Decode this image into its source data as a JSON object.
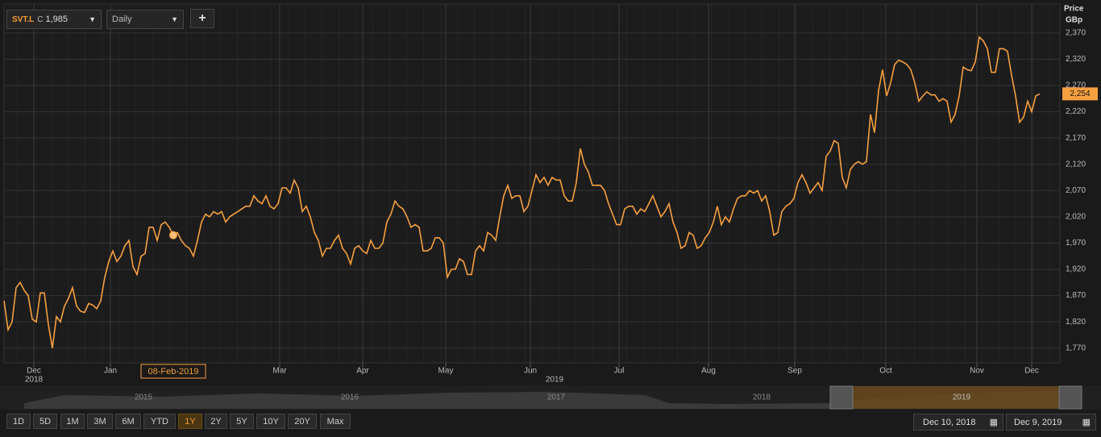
{
  "chart_data": {
    "type": "line",
    "title": "SVT.L",
    "axis_label": [
      "Price",
      "GBp"
    ],
    "color": "#f7a040",
    "values": [
      1860,
      1805,
      1820,
      1885,
      1895,
      1880,
      1870,
      1825,
      1820,
      1875,
      1875,
      1815,
      1770,
      1830,
      1820,
      1850,
      1865,
      1885,
      1850,
      1840,
      1838,
      1855,
      1852,
      1845,
      1860,
      1905,
      1935,
      1955,
      1935,
      1945,
      1965,
      1975,
      1925,
      1910,
      1945,
      1950,
      2000,
      2000,
      1975,
      2005,
      2010,
      2000,
      1985,
      1990,
      1975,
      1965,
      1960,
      1945,
      1975,
      2010,
      2025,
      2020,
      2030,
      2025,
      2030,
      2010,
      2020,
      2025,
      2030,
      2035,
      2040,
      2040,
      2060,
      2050,
      2045,
      2060,
      2040,
      2035,
      2045,
      2075,
      2075,
      2065,
      2090,
      2075,
      2030,
      2040,
      2020,
      1990,
      1975,
      1945,
      1960,
      1960,
      1975,
      1985,
      1960,
      1950,
      1930,
      1960,
      1965,
      1955,
      1950,
      1975,
      1960,
      1960,
      1970,
      2010,
      2025,
      2050,
      2040,
      2035,
      2020,
      2000,
      2005,
      2000,
      1955,
      1955,
      1960,
      1980,
      1980,
      1970,
      1905,
      1920,
      1920,
      1940,
      1935,
      1910,
      1910,
      1955,
      1965,
      1955,
      1990,
      1985,
      1975,
      2020,
      2060,
      2080,
      2055,
      2060,
      2060,
      2030,
      2040,
      2070,
      2100,
      2085,
      2095,
      2080,
      2095,
      2090,
      2090,
      2060,
      2050,
      2050,
      2085,
      2150,
      2120,
      2105,
      2080,
      2080,
      2080,
      2070,
      2045,
      2025,
      2005,
      2005,
      2035,
      2040,
      2040,
      2025,
      2035,
      2030,
      2045,
      2060,
      2040,
      2020,
      2030,
      2045,
      2010,
      1990,
      1960,
      1965,
      1990,
      1985,
      1960,
      1965,
      1980,
      1990,
      2010,
      2040,
      2005,
      2020,
      2010,
      2035,
      2055,
      2060,
      2060,
      2070,
      2065,
      2070,
      2050,
      2060,
      2030,
      1985,
      1990,
      2030,
      2040,
      2045,
      2055,
      2085,
      2100,
      2085,
      2065,
      2075,
      2085,
      2070,
      2135,
      2145,
      2165,
      2160,
      2095,
      2075,
      2110,
      2120,
      2125,
      2120,
      2125,
      2215,
      2180,
      2260,
      2300,
      2250,
      2275,
      2310,
      2318,
      2315,
      2310,
      2300,
      2275,
      2240,
      2250,
      2258,
      2252,
      2252,
      2240,
      2245,
      2240,
      2200,
      2215,
      2250,
      2305,
      2300,
      2298,
      2315,
      2362,
      2355,
      2340,
      2295,
      2295,
      2340,
      2340,
      2335,
      2290,
      2250,
      2200,
      2210,
      2240,
      2220,
      2250,
      2254
    ],
    "last_value_label": "2,254",
    "xlim": [
      0,
      257
    ],
    "xticks": [
      {
        "value": 7.4,
        "label": "Dec"
      },
      {
        "value": 26.4,
        "label": "Jan"
      },
      {
        "value": 68.4,
        "label": "Mar"
      },
      {
        "value": 89,
        "label": "Apr"
      },
      {
        "value": 109.6,
        "label": "May"
      },
      {
        "value": 130.6,
        "label": "Jun"
      },
      {
        "value": 152.6,
        "label": "Jul"
      },
      {
        "value": 174.8,
        "label": "Aug"
      },
      {
        "value": 196.2,
        "label": "Sep"
      },
      {
        "value": 218.8,
        "label": "Oct"
      },
      {
        "value": 241.4,
        "label": "Nov"
      },
      {
        "value": 255,
        "label": "Dec"
      }
    ],
    "year_labels": [
      {
        "value": 7.4,
        "label": "2018"
      },
      {
        "value": 136.6,
        "label": "2019"
      }
    ],
    "ylim": [
      1742,
      2425
    ],
    "yticks": [
      {
        "value": 1770,
        "label": "1,770"
      },
      {
        "value": 1820,
        "label": "1,820"
      },
      {
        "value": 1870,
        "label": "1,870"
      },
      {
        "value": 1920,
        "label": "1,920"
      },
      {
        "value": 1970,
        "label": "1,970"
      },
      {
        "value": 2020,
        "label": "2,020"
      },
      {
        "value": 2070,
        "label": "2,070"
      },
      {
        "value": 2120,
        "label": "2,120"
      },
      {
        "value": 2170,
        "label": "2,170"
      },
      {
        "value": 2220,
        "label": "2,220"
      },
      {
        "value": 2270,
        "label": "2,270"
      },
      {
        "value": 2320,
        "label": "2,320"
      },
      {
        "value": 2370,
        "label": "2,370"
      }
    ],
    "grid": true,
    "crosshair": {
      "label": "08-Feb-2019",
      "index": 42
    }
  },
  "toolbar": {
    "symbol": "SVT.L",
    "price_prefix": "C",
    "price": "1,985",
    "interval": "Daily",
    "add": "+"
  },
  "navigator": {
    "years": [
      "2015",
      "2016",
      "2017",
      "2018",
      "2019"
    ]
  },
  "ranges": [
    "1D",
    "5D",
    "1M",
    "3M",
    "6M",
    "YTD",
    "1Y",
    "2Y",
    "5Y",
    "10Y",
    "20Y",
    "Max"
  ],
  "active_range": "1Y",
  "date_from": "Dec 10, 2018",
  "date_to": "Dec 9, 2019"
}
